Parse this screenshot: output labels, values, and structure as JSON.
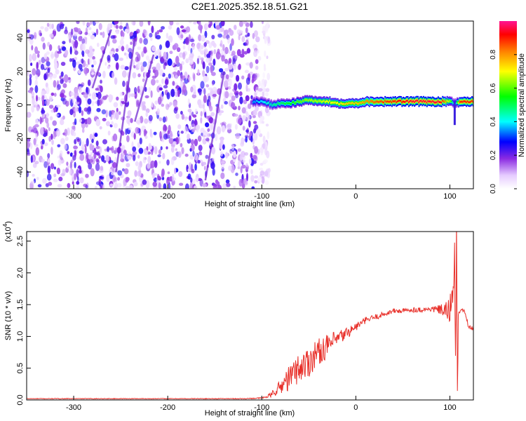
{
  "title": "C2E1.2025.352.18.51.G21",
  "chart_data": [
    {
      "type": "heatmap",
      "xlabel": "Height of straight line (km)",
      "ylabel": "Frequency (Hz)",
      "xlim": [
        -350,
        125
      ],
      "ylim": [
        -50,
        50
      ],
      "xticks": [
        -300,
        -200,
        -100,
        0,
        100
      ],
      "yticks": [
        -40,
        -20,
        0,
        20,
        40
      ],
      "noise_region_x": [
        -350,
        -100
      ],
      "signal_trace": {
        "x": [
          -110,
          -100,
          -90,
          -80,
          -70,
          -60,
          -50,
          -40,
          -30,
          -20,
          -10,
          0,
          10,
          20,
          40,
          60,
          80,
          90,
          100,
          105,
          110,
          125
        ],
        "freq": [
          2,
          2,
          0,
          1,
          1,
          2,
          3,
          2,
          2,
          1,
          1,
          1,
          2,
          2,
          2,
          2,
          2,
          2,
          2,
          1,
          2,
          2
        ],
        "amplitude": [
          0.35,
          0.4,
          0.45,
          0.5,
          0.55,
          0.6,
          0.65,
          0.65,
          0.7,
          0.7,
          0.75,
          0.75,
          0.8,
          0.85,
          0.9,
          0.95,
          0.95,
          0.95,
          0.6,
          0.3,
          0.9,
          0.9
        ]
      },
      "colorbar": {
        "label": "Normalized spectral amplitude",
        "range": [
          0,
          1
        ],
        "ticks": [
          "0.0",
          "0.2",
          "0.4",
          "0.6",
          "0.8"
        ]
      }
    },
    {
      "type": "line",
      "xlabel": "Height of straight line (km)",
      "ylabel": "SNR (10 * v/v)",
      "y_multiplier": "(x10^4)",
      "y_multiplier_base": "(x10",
      "y_multiplier_exp": "4",
      "y_multiplier_close": ")",
      "xlim": [
        -350,
        125
      ],
      "ylim": [
        0,
        2.65
      ],
      "xticks": [
        -300,
        -200,
        -100,
        0,
        100
      ],
      "yticks": [
        0.0,
        0.5,
        1.0,
        1.5,
        2.0,
        2.5
      ],
      "line_color": "#e8302a",
      "series": [
        {
          "x": [
            -350,
            -200,
            -120,
            -100,
            -95,
            -90,
            -85,
            -80,
            -75,
            -70,
            -65,
            -60,
            -55,
            -50,
            -45,
            -40,
            -35,
            -30,
            -25,
            -20,
            -15,
            -10,
            -5,
            0,
            10,
            20,
            30,
            40,
            50,
            60,
            70,
            80,
            90,
            95,
            100,
            103,
            105,
            106,
            107,
            108,
            109,
            110,
            112,
            115,
            120,
            125
          ],
          "y": [
            0.02,
            0.02,
            0.02,
            0.03,
            0.05,
            0.08,
            0.15,
            0.2,
            0.3,
            0.35,
            0.45,
            0.5,
            0.55,
            0.6,
            0.7,
            0.75,
            0.8,
            0.85,
            0.9,
            0.95,
            1.0,
            1.05,
            1.1,
            1.15,
            1.25,
            1.3,
            1.35,
            1.4,
            1.4,
            1.42,
            1.42,
            1.43,
            1.42,
            1.4,
            1.38,
            1.8,
            2.2,
            0.6,
            2.6,
            0.2,
            1.3,
            1.4,
            1.4,
            1.42,
            1.15,
            1.12
          ],
          "noise": [
            0.005,
            0.005,
            0.006,
            0.01,
            0.02,
            0.04,
            0.08,
            0.12,
            0.18,
            0.2,
            0.22,
            0.24,
            0.26,
            0.25,
            0.24,
            0.22,
            0.2,
            0.18,
            0.16,
            0.14,
            0.12,
            0.1,
            0.08,
            0.07,
            0.05,
            0.05,
            0.04,
            0.04,
            0.04,
            0.04,
            0.04,
            0.04,
            0.08,
            0.12,
            0.25,
            0.3,
            0.3,
            0.3,
            0.3,
            0.3,
            0.2,
            0.05,
            0.03,
            0.03,
            0.03,
            0.03
          ]
        }
      ]
    }
  ]
}
